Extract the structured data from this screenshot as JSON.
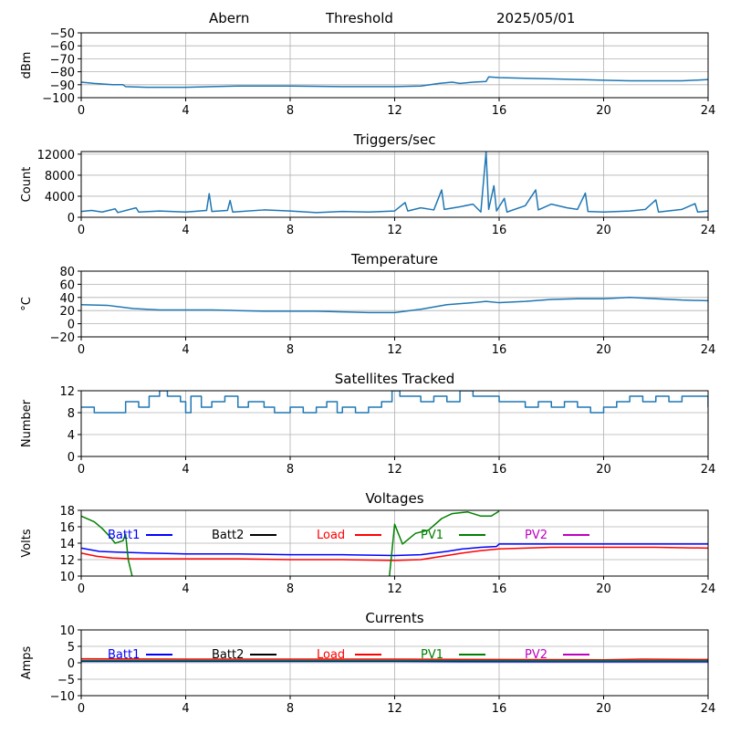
{
  "header": {
    "site": "Abern",
    "mode": "Threshold",
    "date": "2025/05/01"
  },
  "chart_data": [
    {
      "type": "line",
      "title": "",
      "ylabel": "dBm",
      "xlim": [
        0,
        24
      ],
      "ylim": [
        -100,
        -50
      ],
      "xticks": [
        0,
        4,
        8,
        12,
        16,
        20,
        24
      ],
      "yticks": [
        -100,
        -90,
        -80,
        -70,
        -60,
        -50
      ],
      "ytick_labels": [
        "−100",
        "−90",
        "−80",
        "−70",
        "−60",
        "−50"
      ],
      "grid": true,
      "series": [
        {
          "name": "",
          "color": "#1f77b4",
          "points": [
            [
              0,
              -88
            ],
            [
              0.5,
              -89
            ],
            [
              1.2,
              -90
            ],
            [
              1.6,
              -90
            ],
            [
              1.7,
              -91.5
            ],
            [
              2.5,
              -92
            ],
            [
              4,
              -92
            ],
            [
              5,
              -91.5
            ],
            [
              6,
              -91
            ],
            [
              8,
              -91
            ],
            [
              10,
              -91.5
            ],
            [
              12,
              -91.5
            ],
            [
              13,
              -91
            ],
            [
              13.7,
              -89
            ],
            [
              14.2,
              -88
            ],
            [
              14.5,
              -89
            ],
            [
              15,
              -88
            ],
            [
              15.5,
              -87.5
            ],
            [
              15.6,
              -84
            ],
            [
              16,
              -84.5
            ],
            [
              17,
              -85
            ],
            [
              18,
              -85.5
            ],
            [
              19,
              -86
            ],
            [
              20,
              -86.5
            ],
            [
              21,
              -87
            ],
            [
              22,
              -87
            ],
            [
              23,
              -87
            ],
            [
              24,
              -86
            ]
          ]
        }
      ]
    },
    {
      "type": "line",
      "title": "Triggers/sec",
      "ylabel": "Count",
      "xlim": [
        0,
        24
      ],
      "ylim": [
        0,
        12500
      ],
      "xticks": [
        0,
        4,
        8,
        12,
        16,
        20,
        24
      ],
      "yticks": [
        0,
        4000,
        8000,
        12000
      ],
      "ytick_labels": [
        "0",
        "4000",
        "8000",
        "12000"
      ],
      "grid": true,
      "series": [
        {
          "name": "",
          "color": "#1f77b4",
          "points": [
            [
              0,
              1100
            ],
            [
              0.4,
              1300
            ],
            [
              0.8,
              1000
            ],
            [
              1.3,
              1600
            ],
            [
              1.4,
              900
            ],
            [
              2.1,
              1800
            ],
            [
              2.2,
              1000
            ],
            [
              3,
              1200
            ],
            [
              4,
              1000
            ],
            [
              4.8,
              1300
            ],
            [
              4.9,
              4500
            ],
            [
              5,
              1100
            ],
            [
              5.6,
              1300
            ],
            [
              5.7,
              3200
            ],
            [
              5.8,
              1000
            ],
            [
              7,
              1400
            ],
            [
              8,
              1200
            ],
            [
              9,
              900
            ],
            [
              10,
              1100
            ],
            [
              11,
              1000
            ],
            [
              12,
              1200
            ],
            [
              12.4,
              2800
            ],
            [
              12.5,
              1200
            ],
            [
              13,
              1800
            ],
            [
              13.5,
              1400
            ],
            [
              13.8,
              5200
            ],
            [
              13.9,
              1500
            ],
            [
              14.5,
              2000
            ],
            [
              15,
              2500
            ],
            [
              15.3,
              1000
            ],
            [
              15.5,
              12400
            ],
            [
              15.6,
              1500
            ],
            [
              15.8,
              6000
            ],
            [
              15.9,
              1200
            ],
            [
              16.2,
              3600
            ],
            [
              16.3,
              1000
            ],
            [
              17,
              2200
            ],
            [
              17.4,
              5200
            ],
            [
              17.5,
              1400
            ],
            [
              18,
              2500
            ],
            [
              18.6,
              1800
            ],
            [
              19,
              1500
            ],
            [
              19.3,
              4600
            ],
            [
              19.4,
              1100
            ],
            [
              20,
              1000
            ],
            [
              21,
              1200
            ],
            [
              21.6,
              1500
            ],
            [
              22,
              3300
            ],
            [
              22.1,
              1000
            ],
            [
              23,
              1500
            ],
            [
              23.5,
              2600
            ],
            [
              23.6,
              1000
            ],
            [
              24,
              1200
            ]
          ]
        }
      ]
    },
    {
      "type": "line",
      "title": "Temperature",
      "ylabel": "°C",
      "xlim": [
        0,
        24
      ],
      "ylim": [
        -20,
        80
      ],
      "xticks": [
        0,
        4,
        8,
        12,
        16,
        20,
        24
      ],
      "yticks": [
        -20,
        0,
        20,
        40,
        60,
        80
      ],
      "ytick_labels": [
        "−20",
        "0",
        "20",
        "40",
        "60",
        "80"
      ],
      "grid": true,
      "series": [
        {
          "name": "",
          "color": "#1f77b4",
          "points": [
            [
              0,
              29
            ],
            [
              1,
              28
            ],
            [
              2,
              23
            ],
            [
              3,
              21
            ],
            [
              4,
              21
            ],
            [
              5,
              21
            ],
            [
              6,
              20
            ],
            [
              7,
              19
            ],
            [
              8,
              19
            ],
            [
              9,
              19
            ],
            [
              10,
              18
            ],
            [
              11,
              17
            ],
            [
              12,
              17
            ],
            [
              13,
              22
            ],
            [
              14,
              29
            ],
            [
              15,
              32
            ],
            [
              15.5,
              34
            ],
            [
              16,
              32
            ],
            [
              17,
              34
            ],
            [
              18,
              37
            ],
            [
              19,
              38
            ],
            [
              20,
              38
            ],
            [
              21,
              40
            ],
            [
              22,
              38
            ],
            [
              23,
              36
            ],
            [
              24,
              35
            ]
          ]
        }
      ]
    },
    {
      "type": "line",
      "title": "Satellites Tracked",
      "ylabel": "Number",
      "xlim": [
        0,
        24
      ],
      "ylim": [
        0,
        12
      ],
      "xticks": [
        0,
        4,
        8,
        12,
        16,
        20,
        24
      ],
      "yticks": [
        0,
        4,
        8,
        12
      ],
      "ytick_labels": [
        "0",
        "4",
        "8",
        "12"
      ],
      "grid": true,
      "series": [
        {
          "name": "",
          "color": "#1f77b4",
          "step": true,
          "points": [
            [
              0,
              9
            ],
            [
              0.5,
              8
            ],
            [
              1.7,
              10
            ],
            [
              2.2,
              9
            ],
            [
              2.6,
              11
            ],
            [
              3,
              12
            ],
            [
              3.3,
              11
            ],
            [
              3.8,
              10
            ],
            [
              4,
              8
            ],
            [
              4.2,
              11
            ],
            [
              4.6,
              9
            ],
            [
              5,
              10
            ],
            [
              5.5,
              11
            ],
            [
              6,
              9
            ],
            [
              6.4,
              10
            ],
            [
              7,
              9
            ],
            [
              7.4,
              8
            ],
            [
              8,
              9
            ],
            [
              8.5,
              8
            ],
            [
              9,
              9
            ],
            [
              9.4,
              10
            ],
            [
              9.8,
              8
            ],
            [
              10,
              9
            ],
            [
              10.5,
              8
            ],
            [
              11,
              9
            ],
            [
              11.5,
              10
            ],
            [
              11.9,
              12
            ],
            [
              12.2,
              11
            ],
            [
              13,
              10
            ],
            [
              13.5,
              11
            ],
            [
              14,
              10
            ],
            [
              14.5,
              12
            ],
            [
              15,
              11
            ],
            [
              15.5,
              11
            ],
            [
              16,
              10
            ],
            [
              17,
              9
            ],
            [
              17.5,
              10
            ],
            [
              18,
              9
            ],
            [
              18.5,
              10
            ],
            [
              19,
              9
            ],
            [
              19.5,
              8
            ],
            [
              20,
              9
            ],
            [
              20.5,
              10
            ],
            [
              21,
              11
            ],
            [
              21.5,
              10
            ],
            [
              22,
              11
            ],
            [
              22.5,
              10
            ],
            [
              23,
              11
            ],
            [
              24,
              9
            ]
          ]
        }
      ]
    },
    {
      "type": "line",
      "title": "Voltages",
      "ylabel": "Volts",
      "xlim": [
        0,
        24
      ],
      "ylim": [
        10,
        18
      ],
      "xticks": [
        0,
        4,
        8,
        12,
        16,
        20,
        24
      ],
      "yticks": [
        10,
        12,
        14,
        16,
        18
      ],
      "ytick_labels": [
        "10",
        "12",
        "14",
        "16",
        "18"
      ],
      "grid": true,
      "legend": "top, single row",
      "series": [
        {
          "name": "Batt1",
          "color": "#0000ff",
          "points": [
            [
              0,
              13.4
            ],
            [
              0.7,
              13.0
            ],
            [
              1.5,
              12.9
            ],
            [
              2.5,
              12.8
            ],
            [
              4,
              12.7
            ],
            [
              6,
              12.7
            ],
            [
              8,
              12.6
            ],
            [
              10,
              12.6
            ],
            [
              12,
              12.5
            ],
            [
              13,
              12.6
            ],
            [
              14,
              13.0
            ],
            [
              14.6,
              13.3
            ],
            [
              15.3,
              13.5
            ],
            [
              15.9,
              13.6
            ],
            [
              16,
              13.9
            ],
            [
              18,
              13.9
            ],
            [
              20,
              13.9
            ],
            [
              22,
              13.9
            ],
            [
              24,
              13.9
            ]
          ]
        },
        {
          "name": "Batt2",
          "color": "#000000",
          "points": []
        },
        {
          "name": "Load",
          "color": "#ff0000",
          "points": [
            [
              0,
              12.8
            ],
            [
              0.6,
              12.4
            ],
            [
              1.2,
              12.2
            ],
            [
              2,
              12.1
            ],
            [
              4,
              12.1
            ],
            [
              6,
              12.1
            ],
            [
              8,
              12.0
            ],
            [
              10,
              12.0
            ],
            [
              12,
              11.9
            ],
            [
              13,
              12.0
            ],
            [
              14,
              12.5
            ],
            [
              14.6,
              12.8
            ],
            [
              15.3,
              13.1
            ],
            [
              16,
              13.3
            ],
            [
              17,
              13.4
            ],
            [
              18,
              13.5
            ],
            [
              20,
              13.5
            ],
            [
              22,
              13.5
            ],
            [
              24,
              13.4
            ]
          ]
        },
        {
          "name": "PV1",
          "color": "#008000",
          "points": [
            [
              0,
              17.3
            ],
            [
              0.5,
              16.6
            ],
            [
              0.8,
              15.8
            ],
            [
              1.1,
              14.8
            ],
            [
              1.3,
              14.0
            ],
            [
              1.6,
              14.3
            ],
            [
              1.7,
              15.1
            ],
            [
              1.8,
              12.0
            ],
            [
              1.95,
              10.0
            ],
            [
              null,
              null
            ],
            [
              11.8,
              10.0
            ],
            [
              12.0,
              16.3
            ],
            [
              12.3,
              13.9
            ],
            [
              12.8,
              15.2
            ],
            [
              13.3,
              15.6
            ],
            [
              13.8,
              17.0
            ],
            [
              14.2,
              17.6
            ],
            [
              14.8,
              17.8
            ],
            [
              15.3,
              17.3
            ],
            [
              15.7,
              17.3
            ],
            [
              16.0,
              17.9
            ]
          ]
        },
        {
          "name": "PV2",
          "color": "#bf00bf",
          "points": []
        }
      ]
    },
    {
      "type": "line",
      "title": "Currents",
      "ylabel": "Amps",
      "xlim": [
        0,
        24
      ],
      "ylim": [
        -10,
        10
      ],
      "xticks": [
        0,
        4,
        8,
        12,
        16,
        20,
        24
      ],
      "yticks": [
        -10,
        -5,
        0,
        5,
        10
      ],
      "ytick_labels": [
        "−10",
        "−5",
        "0",
        "5",
        "10"
      ],
      "grid": true,
      "legend": "top, single row",
      "series": [
        {
          "name": "Batt1",
          "color": "#0000ff",
          "points": [
            [
              0,
              0.4
            ],
            [
              6,
              0.4
            ],
            [
              12,
              0.4
            ],
            [
              18,
              0.3
            ],
            [
              24,
              0.3
            ]
          ]
        },
        {
          "name": "Batt2",
          "color": "#000000",
          "points": []
        },
        {
          "name": "Load",
          "color": "#ff0000",
          "points": [
            [
              0,
              1.2
            ],
            [
              4,
              1.1
            ],
            [
              8,
              1.1
            ],
            [
              12,
              1.1
            ],
            [
              16,
              1.0
            ],
            [
              20,
              0.9
            ],
            [
              21.5,
              1.1
            ],
            [
              24,
              1.0
            ]
          ]
        },
        {
          "name": "PV1",
          "color": "#008000",
          "points": [
            [
              0,
              0.7
            ],
            [
              24,
              0.7
            ]
          ]
        },
        {
          "name": "PV2",
          "color": "#bf00bf",
          "points": []
        }
      ]
    }
  ]
}
